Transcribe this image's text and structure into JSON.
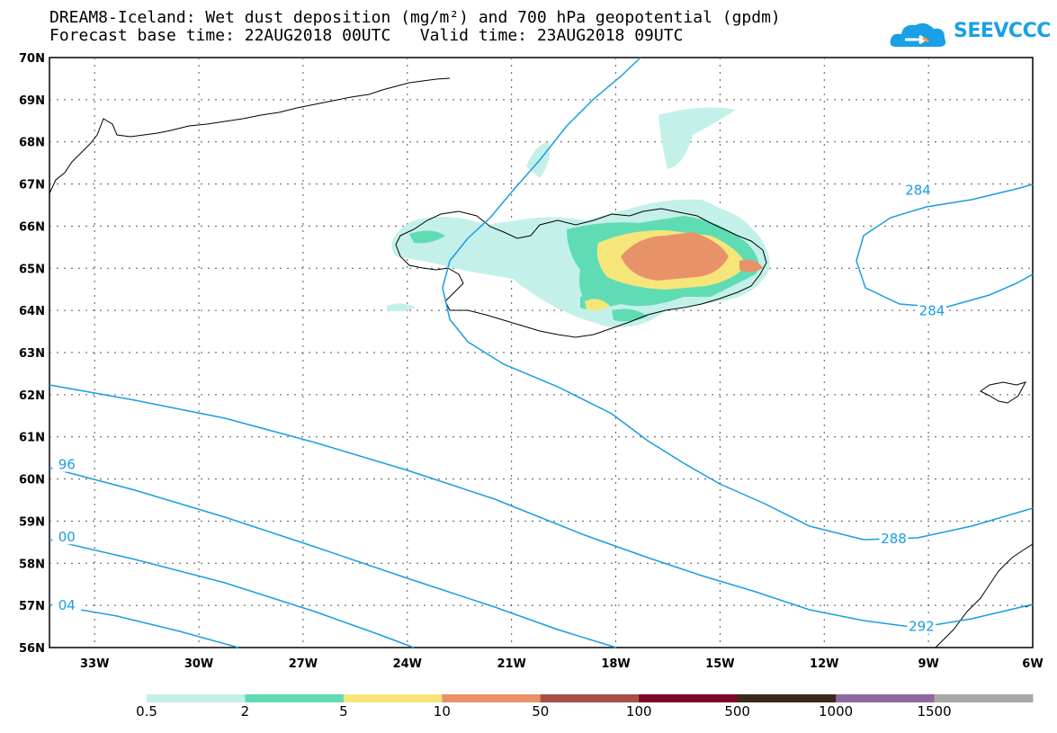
{
  "header": {
    "title_line1": "DREAM8-Iceland: Wet dust deposition (mg/m²) and 700 hPa geopotential (gpdm)",
    "title_line2": "Forecast base time: 22AUG2018 00UTC   Valid time: 23AUG2018 09UTC",
    "logo_text": "SEEVCCC"
  },
  "map": {
    "lat_labels": [
      "70N",
      "69N",
      "68N",
      "67N",
      "66N",
      "65N",
      "64N",
      "63N",
      "62N",
      "61N",
      "60N",
      "59N",
      "58N",
      "57N",
      "56N"
    ],
    "lon_labels": [
      "33W",
      "30W",
      "27W",
      "24W",
      "21W",
      "18W",
      "15W",
      "12W",
      "9W",
      "6W"
    ],
    "contour_labels": [
      {
        "text": "284",
        "lon": -9.3,
        "lat": 66.85
      },
      {
        "text": "284",
        "lon": -8.9,
        "lat": 63.99
      },
      {
        "text": "288",
        "lon": -10.0,
        "lat": 58.58
      },
      {
        "text": "292",
        "lon": -9.2,
        "lat": 56.5
      },
      {
        "text": "96",
        "lon": -33.8,
        "lat": 60.34
      },
      {
        "text": "00",
        "lon": -33.8,
        "lat": 58.62
      },
      {
        "text": "04",
        "lon": -33.8,
        "lat": 57.0
      }
    ],
    "colors": {
      "contour": "#1a9de0",
      "frame": "#000000"
    }
  },
  "colorbar": {
    "colors": [
      "#c4f0ea",
      "#5fdcb4",
      "#f6e67a",
      "#e8926a",
      "#a6504a",
      "#7a0a28",
      "#3b2a1a",
      "#8e68a0",
      "#a8a8a8"
    ],
    "labels": [
      "0.5",
      "2",
      "5",
      "10",
      "50",
      "100",
      "500",
      "1000",
      "1500"
    ]
  }
}
